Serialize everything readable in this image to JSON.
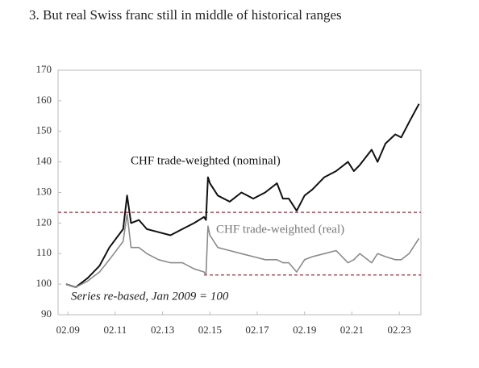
{
  "chart_data": {
    "type": "line",
    "title": "3.  But real Swiss franc still in middle of historical ranges",
    "annotation": "Series re-based, Jan 2009 = 100",
    "x": [
      "01.09",
      "06.09",
      "12.09",
      "06.10",
      "11.10",
      "06.11",
      "08.11",
      "10.11",
      "02.12",
      "06.12",
      "12.12",
      "06.13",
      "12.13",
      "06.14",
      "11.14",
      "12.14",
      "01.15",
      "02.15",
      "06.15",
      "12.15",
      "06.16",
      "12.16",
      "06.17",
      "12.17",
      "03.18",
      "06.18",
      "10.18",
      "02.19",
      "06.19",
      "12.19",
      "06.20",
      "12.20",
      "03.21",
      "06.21",
      "12.21",
      "03.22",
      "07.22",
      "12.22",
      "03.23",
      "07.23",
      "12.23"
    ],
    "series": [
      {
        "name": "CHF trade-weighted (nominal)",
        "color": "#111111",
        "values": [
          100,
          99,
          102,
          106,
          112,
          118,
          129,
          120,
          121,
          118,
          117,
          116,
          118,
          120,
          122,
          121,
          135,
          133,
          129,
          127,
          130,
          128,
          130,
          133,
          128,
          128,
          124,
          129,
          131,
          135,
          137,
          140,
          137,
          139,
          144,
          140,
          146,
          149,
          148,
          153,
          159
        ]
      },
      {
        "name": "CHF trade-weighted (real)",
        "color": "#8a8a8a",
        "values": [
          100,
          99,
          101,
          104,
          108,
          114,
          123,
          112,
          112,
          110,
          108,
          107,
          107,
          105,
          104,
          103,
          119,
          116,
          112,
          111,
          110,
          109,
          108,
          108,
          107,
          107,
          104,
          108,
          109,
          110,
          111,
          107,
          108,
          110,
          107,
          110,
          109,
          108,
          108,
          110,
          115
        ]
      }
    ],
    "reference_lines": [
      {
        "value": 123.5,
        "color": "#9b2d3c"
      },
      {
        "value": 103,
        "from": "11.14",
        "color": "#9b2d3c"
      }
    ],
    "xlim": [
      "09.08",
      "01.24"
    ],
    "xticks": [
      "02.09",
      "02.11",
      "02.13",
      "02.15",
      "02.17",
      "02.19",
      "02.21",
      "02.23"
    ],
    "ylim": [
      90,
      170
    ],
    "yticks": [
      90,
      100,
      110,
      120,
      130,
      140,
      150,
      160,
      170
    ]
  }
}
